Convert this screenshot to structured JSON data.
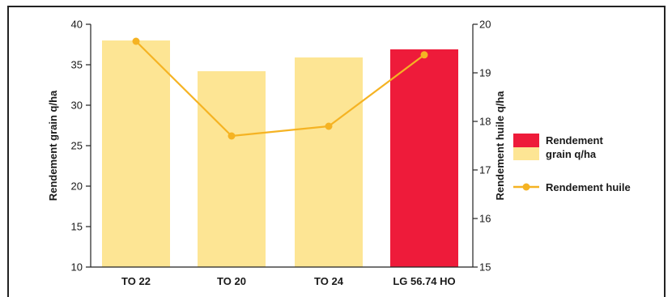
{
  "chart_data": {
    "type": "bar+line",
    "categories": [
      "TO 22",
      "TO 20",
      "TO 24",
      "LG 56.74 HO"
    ],
    "series": [
      {
        "name": "Rendement grain q/ha",
        "legend_lines": [
          "Rendement",
          "grain q/ha"
        ],
        "type": "bar",
        "axis": "left",
        "values": [
          38.0,
          34.2,
          35.9,
          36.9
        ],
        "colors": [
          "#fde594",
          "#fde594",
          "#fde594",
          "#ee1b3a"
        ]
      },
      {
        "name": "Rendement huile",
        "type": "line",
        "axis": "right",
        "values": [
          19.65,
          17.7,
          17.9,
          19.37
        ],
        "color": "#f5b323"
      }
    ],
    "ylabel": "Rendement grain q/ha",
    "y2label": "Rendement huile q/ha",
    "ylim": [
      10,
      40
    ],
    "y2lim": [
      15,
      20
    ],
    "yticks": [
      10,
      15,
      20,
      25,
      30,
      35,
      40
    ],
    "y2ticks": [
      15,
      16,
      17,
      18,
      19,
      20
    ],
    "highlight_category": "LG 56.74 HO",
    "legend_position": "right",
    "grid": false
  }
}
